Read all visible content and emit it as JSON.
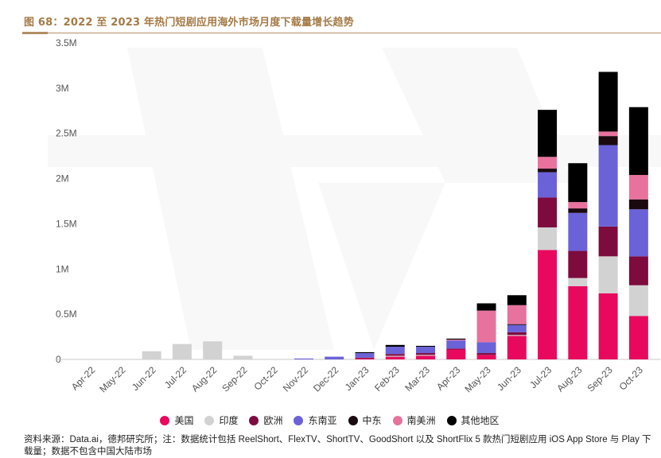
{
  "header": {
    "title": "图 68：2022 至 2023 年热门短剧应用海外市场月度下载量增长趋势"
  },
  "chart_data": {
    "type": "bar",
    "stacked": true,
    "title": "2022 至 2023 年热门短剧应用海外市场月度下载量增长趋势",
    "categories": [
      "Apr-22",
      "May-22",
      "Jun-22",
      "Jul-22",
      "Aug-22",
      "Sep-22",
      "Oct-22",
      "Nov-22",
      "Dec-22",
      "Jan-23",
      "Feb-23",
      "Mar-23",
      "Apr-23",
      "May-23",
      "Jun-23",
      "Jul-23",
      "Aug-23",
      "Sep-23",
      "Oct-23"
    ],
    "y_tick_labels": [
      "0",
      "0.5M",
      "1M",
      "1.5M",
      "2M",
      "2.5M",
      "3M",
      "3.5M"
    ],
    "y_ticks": [
      0,
      0.5,
      1,
      1.5,
      2,
      2.5,
      3,
      3.5
    ],
    "ylim": [
      0,
      3.5
    ],
    "ylabel": "",
    "xlabel": "",
    "legend_position": "bottom",
    "series": [
      {
        "name": "美国",
        "color": "#e8095f",
        "values": [
          0,
          0,
          0,
          0,
          0,
          0,
          0,
          0,
          0,
          0.01,
          0.03,
          0.04,
          0.11,
          0.05,
          0.26,
          1.21,
          0.81,
          0.73,
          0.48
        ]
      },
      {
        "name": "印度",
        "color": "#d2d2d2",
        "values": [
          0,
          0,
          0.09,
          0.17,
          0.2,
          0.04,
          0,
          0,
          0,
          0,
          0.01,
          0.01,
          0,
          0,
          0.01,
          0.25,
          0.09,
          0.41,
          0.34
        ]
      },
      {
        "name": "欧洲",
        "color": "#7d0b3e",
        "values": [
          0,
          0,
          0,
          0,
          0,
          0,
          0,
          0,
          0,
          0.01,
          0.02,
          0.02,
          0.01,
          0.02,
          0.03,
          0.33,
          0.3,
          0.33,
          0.32
        ]
      },
      {
        "name": "东南亚",
        "color": "#6b62d8",
        "values": [
          0,
          0,
          0,
          0,
          0,
          0,
          0,
          0.01,
          0.03,
          0.05,
          0.08,
          0.07,
          0.09,
          0.12,
          0.08,
          0.28,
          0.42,
          0.9,
          0.52
        ]
      },
      {
        "name": "中东",
        "color": "#1a0a10",
        "values": [
          0,
          0,
          0,
          0,
          0,
          0,
          0,
          0,
          0,
          0,
          0,
          0,
          0,
          0,
          0.01,
          0.04,
          0.05,
          0.1,
          0.11
        ]
      },
      {
        "name": "南美洲",
        "color": "#e8729e",
        "values": [
          0,
          0,
          0,
          0,
          0,
          0,
          0,
          0,
          0,
          0,
          0,
          0,
          0.01,
          0.35,
          0.21,
          0.13,
          0.07,
          0.05,
          0.27
        ]
      },
      {
        "name": "其他地区",
        "color": "#000000",
        "values": [
          0,
          0,
          0,
          0,
          0,
          0,
          0,
          0,
          0,
          0.01,
          0.02,
          0.01,
          0.01,
          0.08,
          0.11,
          0.52,
          0.43,
          0.66,
          0.75
        ]
      }
    ]
  },
  "footer": {
    "source_text": "资料来源：Data.ai，德邦研究所；注：数据统计包括 ReelShort、FlexTV、ShortTV、GoodShort 以及 ShortFlix 5 款热门短剧应用 iOS App Store 与 Play 下载量；数据不包含中国大陆市场"
  }
}
